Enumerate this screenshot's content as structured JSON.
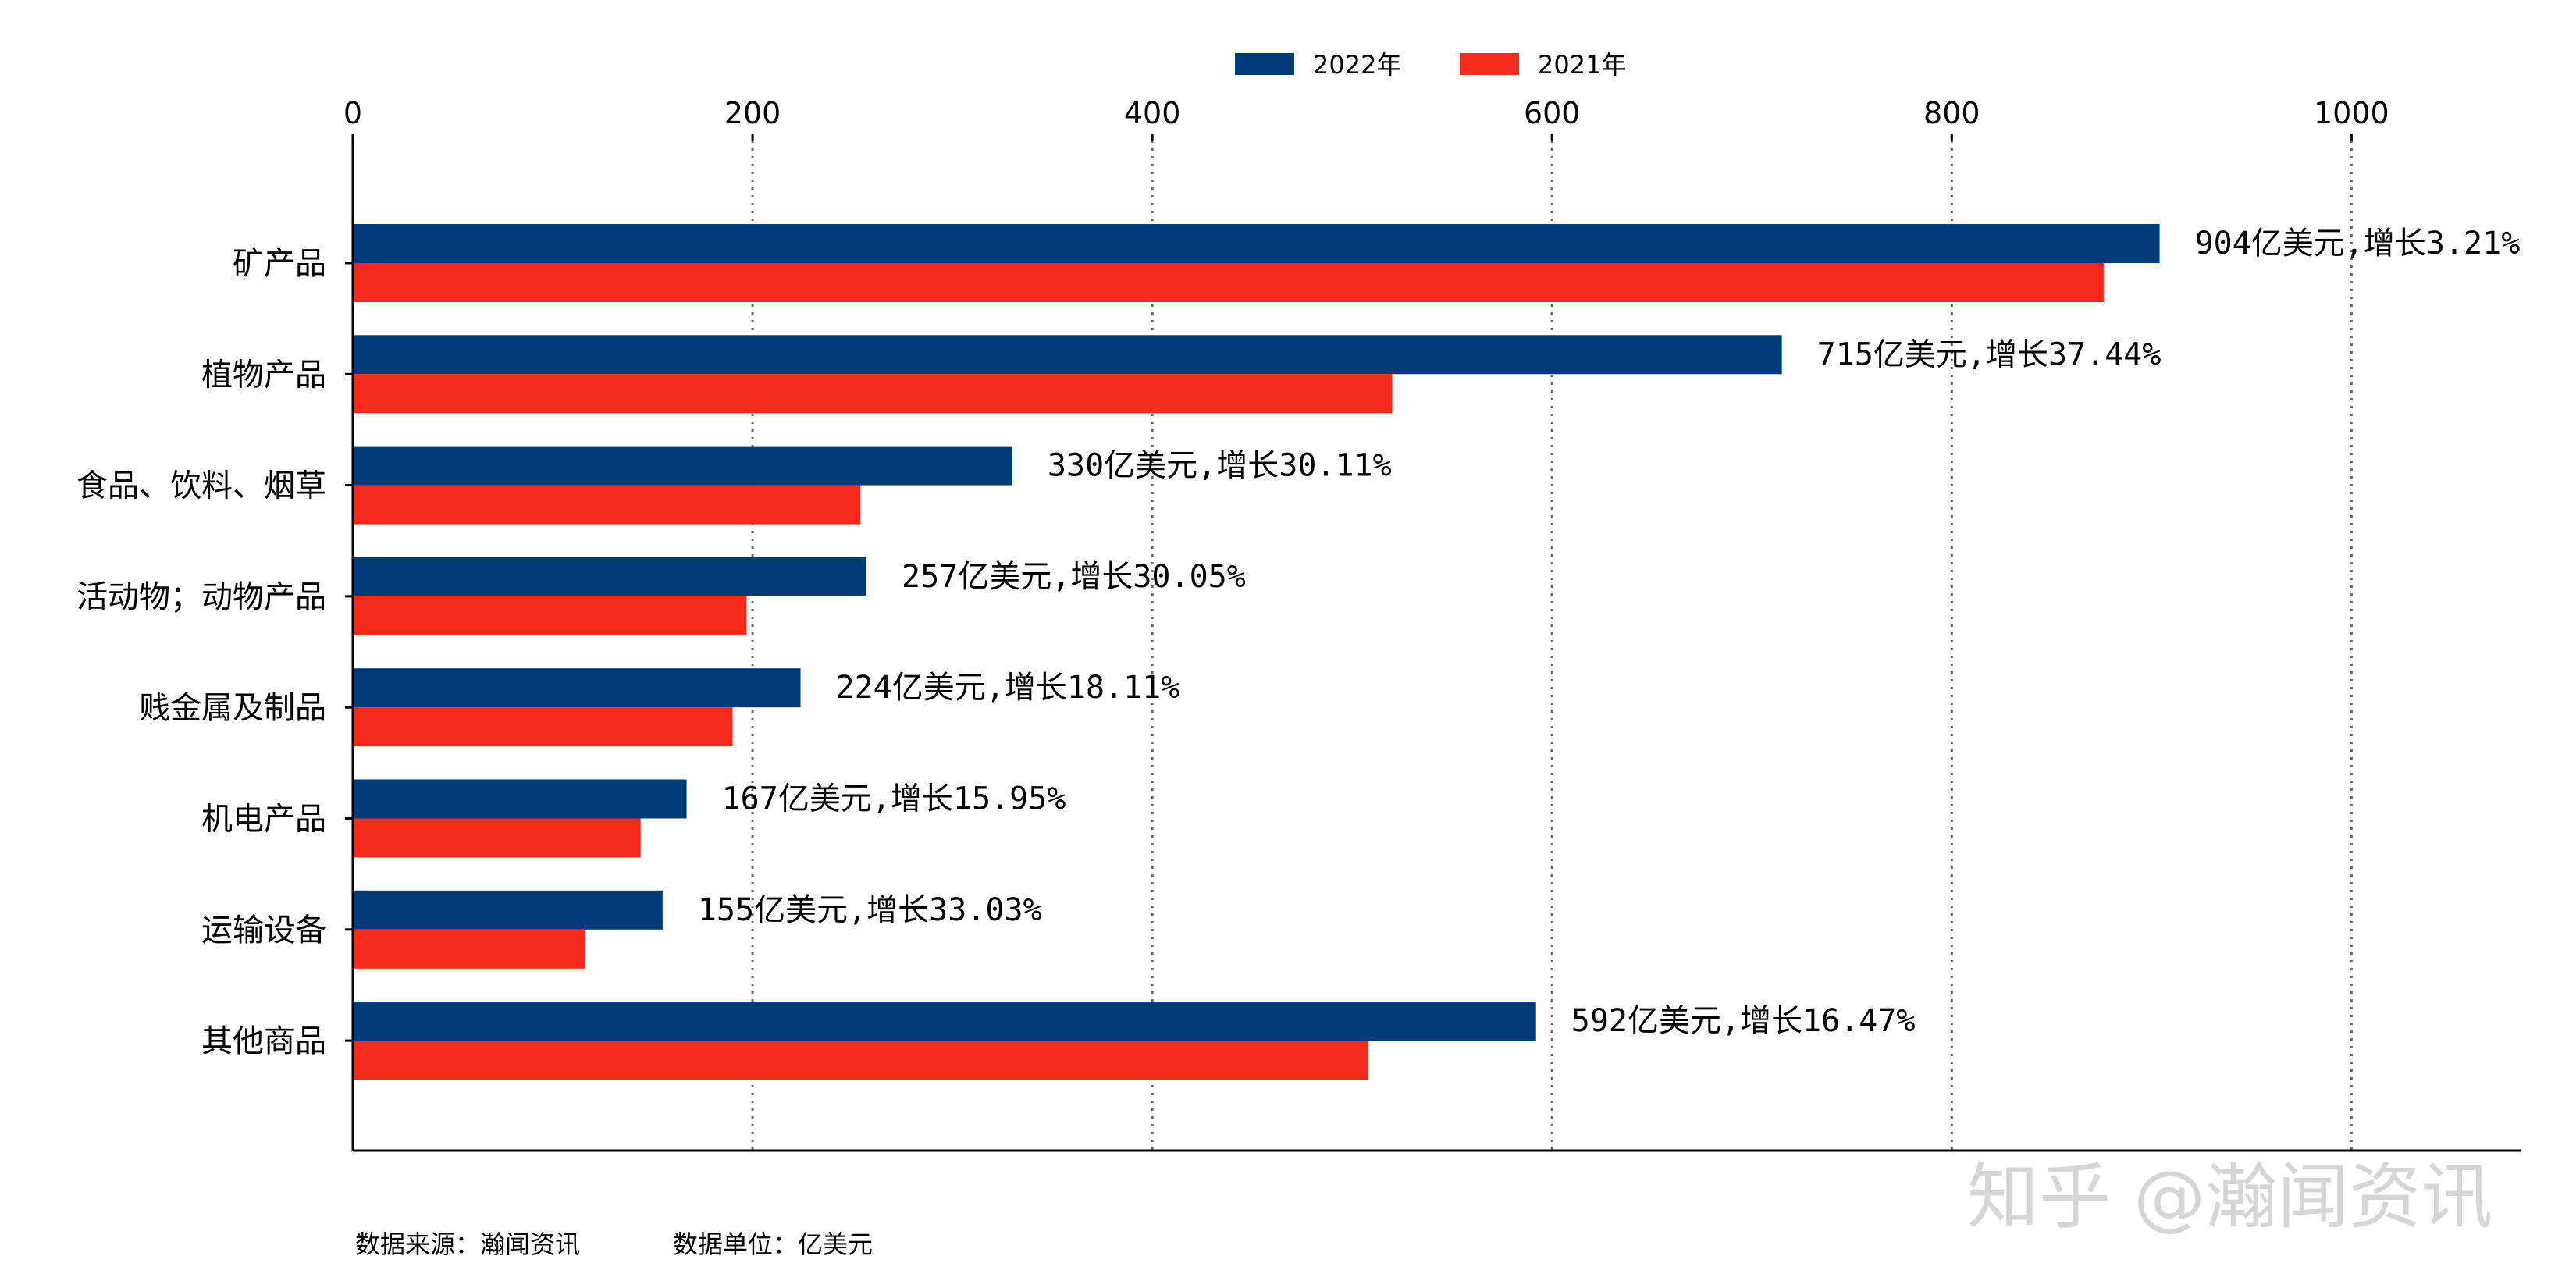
{
  "chart_data": {
    "type": "bar",
    "orientation": "horizontal",
    "categories": [
      "矿产品",
      "植物产品",
      "食品、饮料、烟草",
      "活动物；动物产品",
      "贱金属及制品",
      "机电产品",
      "运输设备",
      "其他商品"
    ],
    "series": [
      {
        "name": "2022年",
        "color": "#003A78",
        "values": [
          904,
          715,
          330,
          257,
          224,
          167,
          155,
          592
        ]
      },
      {
        "name": "2021年",
        "color": "#F5291C",
        "values": [
          876,
          520,
          254,
          197,
          190,
          144,
          116,
          508
        ]
      }
    ],
    "data_labels": [
      "904亿美元,增长3.21%",
      "715亿美元,增长37.44%",
      "330亿美元,增长30.11%",
      "257亿美元,增长30.05%",
      "224亿美元,增长18.11%",
      "167亿美元,增长15.95%",
      "155亿美元,增长33.03%",
      "592亿美元,增长16.47%"
    ],
    "x_ticks": [
      0,
      200,
      400,
      600,
      800,
      1000
    ],
    "xlim": [
      0,
      1085
    ],
    "x_axis_position": "top",
    "grid": "vertical dotted",
    "legend_placement": "top-center",
    "title": "",
    "xlabel": "",
    "ylabel": ""
  },
  "footer": {
    "source": "数据来源：瀚闻资讯",
    "unit": "数据单位：亿美元"
  },
  "watermark": "知乎 @瀚闻资讯"
}
